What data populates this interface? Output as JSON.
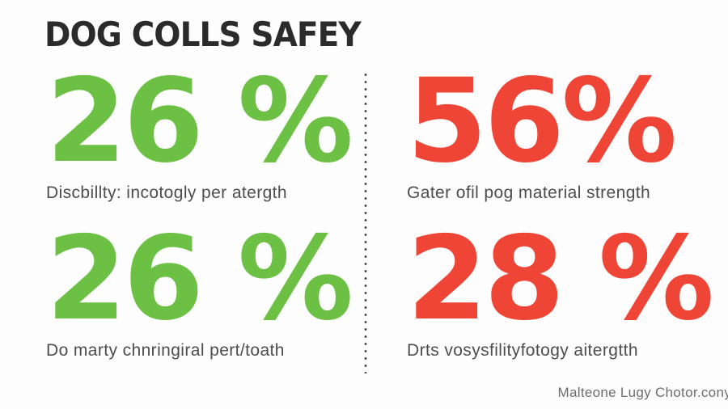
{
  "title": "DOG COLLS SAFEY",
  "footer": "Malteone Lugy Chotor.cony",
  "colors": {
    "green": "#6cc043",
    "red": "#ee4536",
    "title": "#2b2b2b",
    "caption": "#4d4d4d",
    "background": "#fdfdfd"
  },
  "stats": [
    {
      "display": "26 %",
      "value": 26,
      "color": "green",
      "label": "Discbillty: incotogly per atergth"
    },
    {
      "display": "56%",
      "value": 56,
      "color": "red",
      "label": "Gater ofil pog material strength"
    },
    {
      "display": "26 %",
      "value": 26,
      "color": "green",
      "label": "Do marty chnringiral pert/toath"
    },
    {
      "display": "28 %",
      "value": 28,
      "color": "red",
      "label": "Drts vosysfilityfotogy aitergtth"
    }
  ],
  "chart_data": {
    "type": "table",
    "title": "DOG COLLS SAFEY",
    "categories": [
      "Discbillty: incotogly per atergth",
      "Gater ofil pog material strength",
      "Do marty chnringiral pert/toath",
      "Drts vosysfilityfotogy aitergtth"
    ],
    "values": [
      26,
      56,
      26,
      28
    ],
    "unit": "%",
    "value_colors": [
      "#6cc043",
      "#ee4536",
      "#6cc043",
      "#ee4536"
    ],
    "layout": "2x2-grid with dotted vertical divider, green = positive column, red = negative column"
  }
}
